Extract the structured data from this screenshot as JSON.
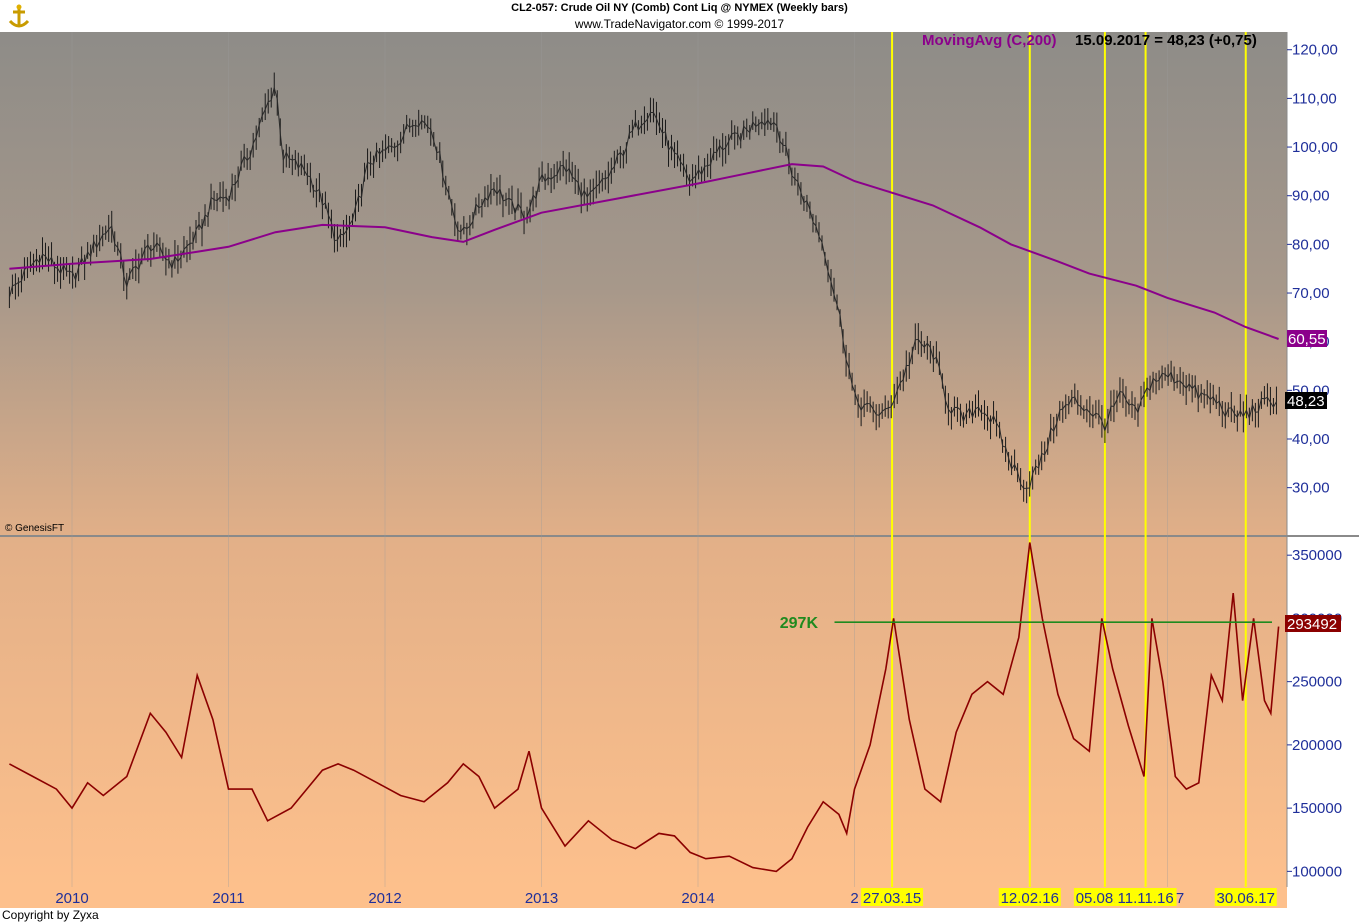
{
  "header": {
    "title": "CL2-057:  Crude Oil NY (Comb) Cont Liq @ NYMEX  (Weekly bars)",
    "subtitle": "www.TradeNavigator.com © 1999-2017"
  },
  "footer": {
    "copyright": "Copyright by Zyxa",
    "genesis": "© GenesisFT"
  },
  "colors": {
    "price": "#000000",
    "ma": "#8b008b",
    "oi": "#8b0000",
    "vline": "#ffff00",
    "level": "#1f8a1f"
  },
  "chart_data": [
    {
      "type": "line",
      "panel": "price",
      "legend": {
        "ma_label": "MovingAvg (C,200)",
        "info": "15.09.2017 = 48,23 (+0,75)"
      },
      "ylim": [
        25,
        122
      ],
      "yticks": [
        30,
        40,
        50,
        60,
        70,
        80,
        90,
        100,
        110,
        120
      ],
      "ytick_labels": [
        "30,00",
        "40,00",
        "50,00",
        "60,00",
        "70,00",
        "80,00",
        "90,00",
        "100,00",
        "110,00",
        "120,00"
      ],
      "last_price_label": "48,23",
      "last_ma_label": "60,55",
      "x_labels": [
        "2010",
        "2011",
        "2012",
        "2013",
        "2014",
        "2",
        "2017"
      ],
      "x_label_years": [
        2010,
        2011,
        2012,
        2013,
        2014,
        2015,
        2017
      ],
      "price_keypoints": [
        [
          2009.6,
          70
        ],
        [
          2009.8,
          78
        ],
        [
          2010.0,
          73
        ],
        [
          2010.15,
          80
        ],
        [
          2010.25,
          84
        ],
        [
          2010.35,
          72
        ],
        [
          2010.5,
          80
        ],
        [
          2010.65,
          76
        ],
        [
          2010.8,
          82
        ],
        [
          2010.9,
          89
        ],
        [
          2011.0,
          90
        ],
        [
          2011.15,
          100
        ],
        [
          2011.3,
          113
        ],
        [
          2011.35,
          98
        ],
        [
          2011.5,
          95
        ],
        [
          2011.6,
          89
        ],
        [
          2011.7,
          80
        ],
        [
          2011.8,
          85
        ],
        [
          2011.9,
          97
        ],
        [
          2012.05,
          100
        ],
        [
          2012.2,
          106
        ],
        [
          2012.3,
          104
        ],
        [
          2012.45,
          85
        ],
        [
          2012.5,
          82
        ],
        [
          2012.6,
          88
        ],
        [
          2012.7,
          92
        ],
        [
          2012.8,
          88
        ],
        [
          2012.9,
          86
        ],
        [
          2013.0,
          93
        ],
        [
          2013.15,
          96
        ],
        [
          2013.3,
          89
        ],
        [
          2013.45,
          95
        ],
        [
          2013.6,
          104
        ],
        [
          2013.7,
          108
        ],
        [
          2013.85,
          98
        ],
        [
          2013.95,
          93
        ],
        [
          2014.05,
          96
        ],
        [
          2014.15,
          100
        ],
        [
          2014.3,
          103
        ],
        [
          2014.4,
          106
        ],
        [
          2014.5,
          105
        ],
        [
          2014.6,
          95
        ],
        [
          2014.7,
          88
        ],
        [
          2014.8,
          80
        ],
        [
          2014.9,
          66
        ],
        [
          2015.0,
          48
        ],
        [
          2015.1,
          46
        ],
        [
          2015.2,
          45
        ],
        [
          2015.3,
          52
        ],
        [
          2015.4,
          60
        ],
        [
          2015.5,
          58
        ],
        [
          2015.6,
          47
        ],
        [
          2015.7,
          44
        ],
        [
          2015.8,
          47
        ],
        [
          2015.9,
          43
        ],
        [
          2016.0,
          35
        ],
        [
          2016.1,
          30
        ],
        [
          2016.2,
          36
        ],
        [
          2016.3,
          45
        ],
        [
          2016.4,
          48
        ],
        [
          2016.5,
          46
        ],
        [
          2016.6,
          43
        ],
        [
          2016.7,
          49
        ],
        [
          2016.8,
          45
        ],
        [
          2016.9,
          52
        ],
        [
          2017.0,
          53
        ],
        [
          2017.1,
          52
        ],
        [
          2017.2,
          49
        ],
        [
          2017.3,
          48
        ],
        [
          2017.4,
          45
        ],
        [
          2017.5,
          45
        ],
        [
          2017.6,
          47
        ],
        [
          2017.71,
          48.23
        ]
      ],
      "ma_keypoints": [
        [
          2009.6,
          75
        ],
        [
          2010.0,
          76
        ],
        [
          2010.5,
          77
        ],
        [
          2010.8,
          78.5
        ],
        [
          2011.0,
          79.5
        ],
        [
          2011.3,
          82.5
        ],
        [
          2011.6,
          84
        ],
        [
          2012.0,
          83.5
        ],
        [
          2012.3,
          81.5
        ],
        [
          2012.5,
          80.5
        ],
        [
          2012.7,
          83
        ],
        [
          2013.0,
          86.5
        ],
        [
          2013.5,
          89.5
        ],
        [
          2014.0,
          92.5
        ],
        [
          2014.3,
          94.5
        ],
        [
          2014.6,
          96.5
        ],
        [
          2014.8,
          96
        ],
        [
          2015.0,
          93
        ],
        [
          2015.2,
          91
        ],
        [
          2015.5,
          88
        ],
        [
          2015.8,
          83.5
        ],
        [
          2016.0,
          80
        ],
        [
          2016.3,
          76.5
        ],
        [
          2016.5,
          74
        ],
        [
          2016.8,
          71.5
        ],
        [
          2017.0,
          69
        ],
        [
          2017.3,
          66
        ],
        [
          2017.5,
          63
        ],
        [
          2017.71,
          60.55
        ]
      ]
    },
    {
      "type": "line",
      "panel": "open-interest",
      "ylim": [
        90000,
        362000
      ],
      "yticks": [
        100000,
        150000,
        200000,
        250000,
        300000,
        350000
      ],
      "ytick_labels": [
        "100000",
        "150000",
        "200000",
        "250000",
        "300000",
        "350000"
      ],
      "last_value_label": "293492",
      "level": {
        "label": "297K",
        "value": 297000,
        "from_x": 2015.0
      },
      "oi_keypoints": [
        [
          2009.6,
          185000
        ],
        [
          2009.75,
          175000
        ],
        [
          2009.9,
          165000
        ],
        [
          2010.0,
          150000
        ],
        [
          2010.1,
          170000
        ],
        [
          2010.2,
          160000
        ],
        [
          2010.35,
          175000
        ],
        [
          2010.5,
          225000
        ],
        [
          2010.6,
          210000
        ],
        [
          2010.7,
          190000
        ],
        [
          2010.8,
          255000
        ],
        [
          2010.9,
          220000
        ],
        [
          2011.0,
          165000
        ],
        [
          2011.15,
          165000
        ],
        [
          2011.25,
          140000
        ],
        [
          2011.4,
          150000
        ],
        [
          2011.5,
          165000
        ],
        [
          2011.6,
          180000
        ],
        [
          2011.7,
          185000
        ],
        [
          2011.8,
          180000
        ],
        [
          2011.95,
          170000
        ],
        [
          2012.1,
          160000
        ],
        [
          2012.25,
          155000
        ],
        [
          2012.4,
          170000
        ],
        [
          2012.5,
          185000
        ],
        [
          2012.6,
          175000
        ],
        [
          2012.7,
          150000
        ],
        [
          2012.85,
          165000
        ],
        [
          2012.92,
          195000
        ],
        [
          2013.0,
          150000
        ],
        [
          2013.15,
          120000
        ],
        [
          2013.3,
          140000
        ],
        [
          2013.45,
          125000
        ],
        [
          2013.6,
          118000
        ],
        [
          2013.75,
          130000
        ],
        [
          2013.85,
          128000
        ],
        [
          2013.95,
          115000
        ],
        [
          2014.05,
          110000
        ],
        [
          2014.2,
          112000
        ],
        [
          2014.35,
          103000
        ],
        [
          2014.5,
          100000
        ],
        [
          2014.6,
          110000
        ],
        [
          2014.7,
          135000
        ],
        [
          2014.8,
          155000
        ],
        [
          2014.9,
          145000
        ],
        [
          2014.95,
          130000
        ],
        [
          2015.0,
          165000
        ],
        [
          2015.1,
          200000
        ],
        [
          2015.2,
          260000
        ],
        [
          2015.25,
          300000
        ],
        [
          2015.35,
          220000
        ],
        [
          2015.45,
          165000
        ],
        [
          2015.55,
          155000
        ],
        [
          2015.65,
          210000
        ],
        [
          2015.75,
          240000
        ],
        [
          2015.85,
          250000
        ],
        [
          2015.95,
          240000
        ],
        [
          2016.05,
          285000
        ],
        [
          2016.12,
          360000
        ],
        [
          2016.2,
          300000
        ],
        [
          2016.3,
          240000
        ],
        [
          2016.4,
          205000
        ],
        [
          2016.5,
          195000
        ],
        [
          2016.58,
          300000
        ],
        [
          2016.65,
          260000
        ],
        [
          2016.75,
          215000
        ],
        [
          2016.85,
          175000
        ],
        [
          2016.9,
          300000
        ],
        [
          2016.97,
          250000
        ],
        [
          2017.05,
          175000
        ],
        [
          2017.12,
          165000
        ],
        [
          2017.2,
          170000
        ],
        [
          2017.28,
          255000
        ],
        [
          2017.35,
          235000
        ],
        [
          2017.42,
          320000
        ],
        [
          2017.48,
          235000
        ],
        [
          2017.55,
          300000
        ],
        [
          2017.62,
          235000
        ],
        [
          2017.66,
          225000
        ],
        [
          2017.71,
          293492
        ]
      ],
      "vlines": [
        {
          "label": "27.03.15",
          "x": 2015.24
        },
        {
          "label": "12.02.16",
          "x": 2016.12
        },
        {
          "label": "05.08.16",
          "x": 2016.6
        },
        {
          "label": "11.11.16",
          "x": 2016.86
        },
        {
          "label": "30.06.17",
          "x": 2017.5
        }
      ]
    }
  ]
}
